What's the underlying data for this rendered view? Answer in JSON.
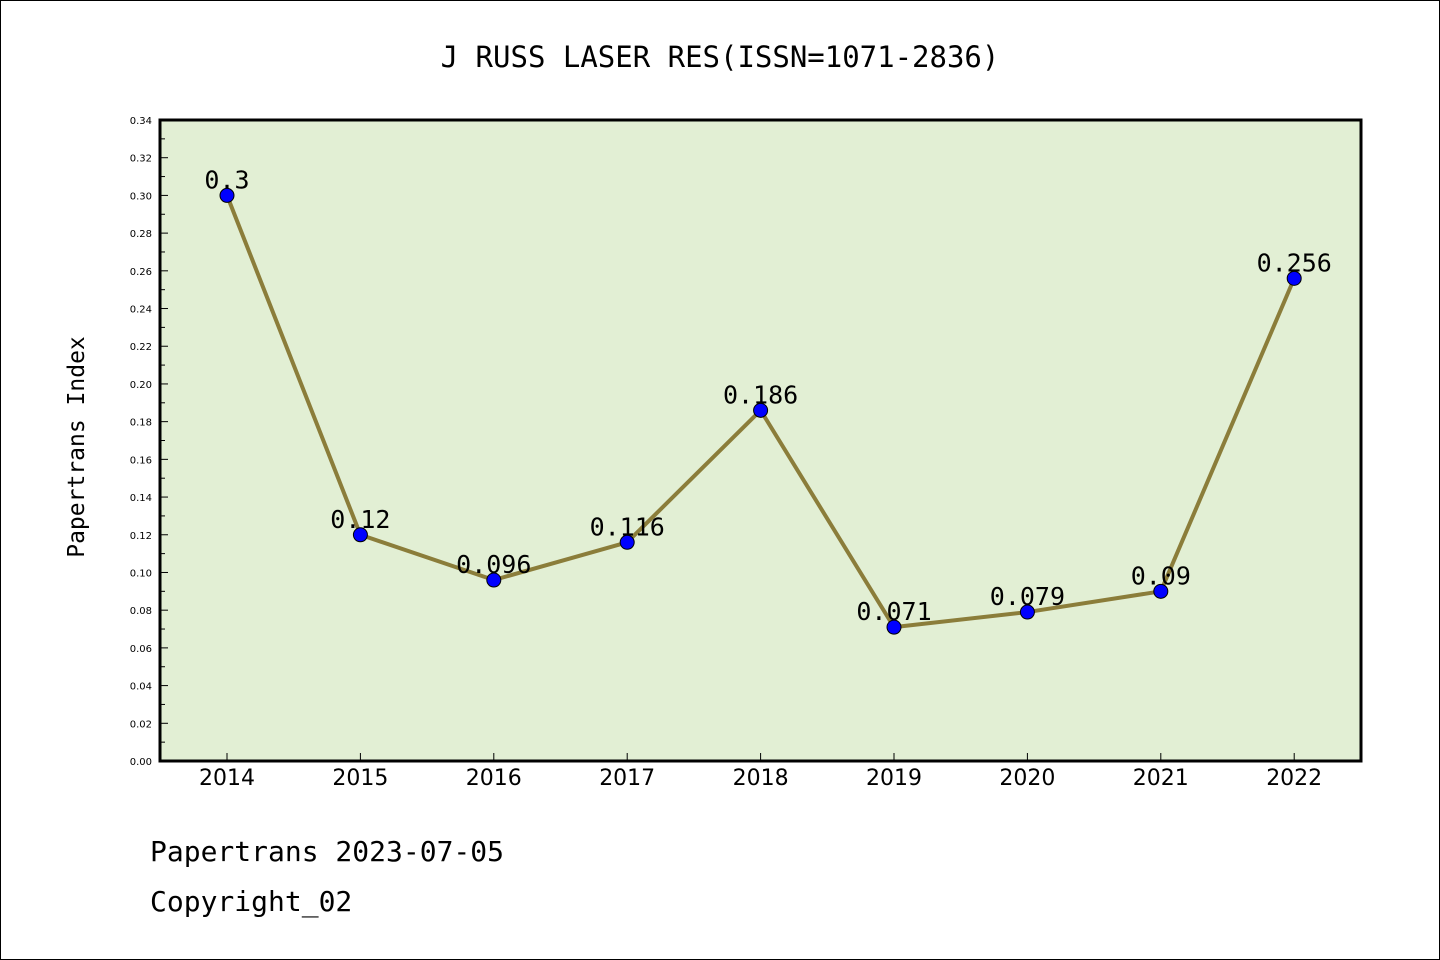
{
  "colors": {
    "plot_background": "#e2efd4",
    "line": "#8b7d3a",
    "marker": "#0000ff"
  },
  "chart_data": {
    "type": "line",
    "title": "J RUSS LASER RES(ISSN=1071-2836)",
    "xlabel": "",
    "ylabel": "Papertrans Index",
    "ylim": [
      0,
      0.34
    ],
    "grid": false,
    "categories": [
      "2014",
      "2015",
      "2016",
      "2017",
      "2018",
      "2019",
      "2020",
      "2021",
      "2022"
    ],
    "series": [
      {
        "values": [
          0.3,
          0.12,
          0.096,
          0.116,
          0.186,
          0.071,
          0.079,
          0.09,
          0.256
        ],
        "labels": [
          "0.3",
          "0.12",
          "0.096",
          "0.116",
          "0.186",
          "0.071",
          "0.079",
          "0.09",
          "0.256"
        ]
      }
    ],
    "yticks": [
      "0.00",
      "0.02",
      "0.04",
      "0.06",
      "0.08",
      "0.10",
      "0.12",
      "0.14",
      "0.16",
      "0.18",
      "0.20",
      "0.22",
      "0.24",
      "0.26",
      "0.28",
      "0.30",
      "0.32",
      "0.34"
    ]
  },
  "footer": {
    "line1": "Papertrans 2023-07-05",
    "line2": "Copyright_02"
  }
}
